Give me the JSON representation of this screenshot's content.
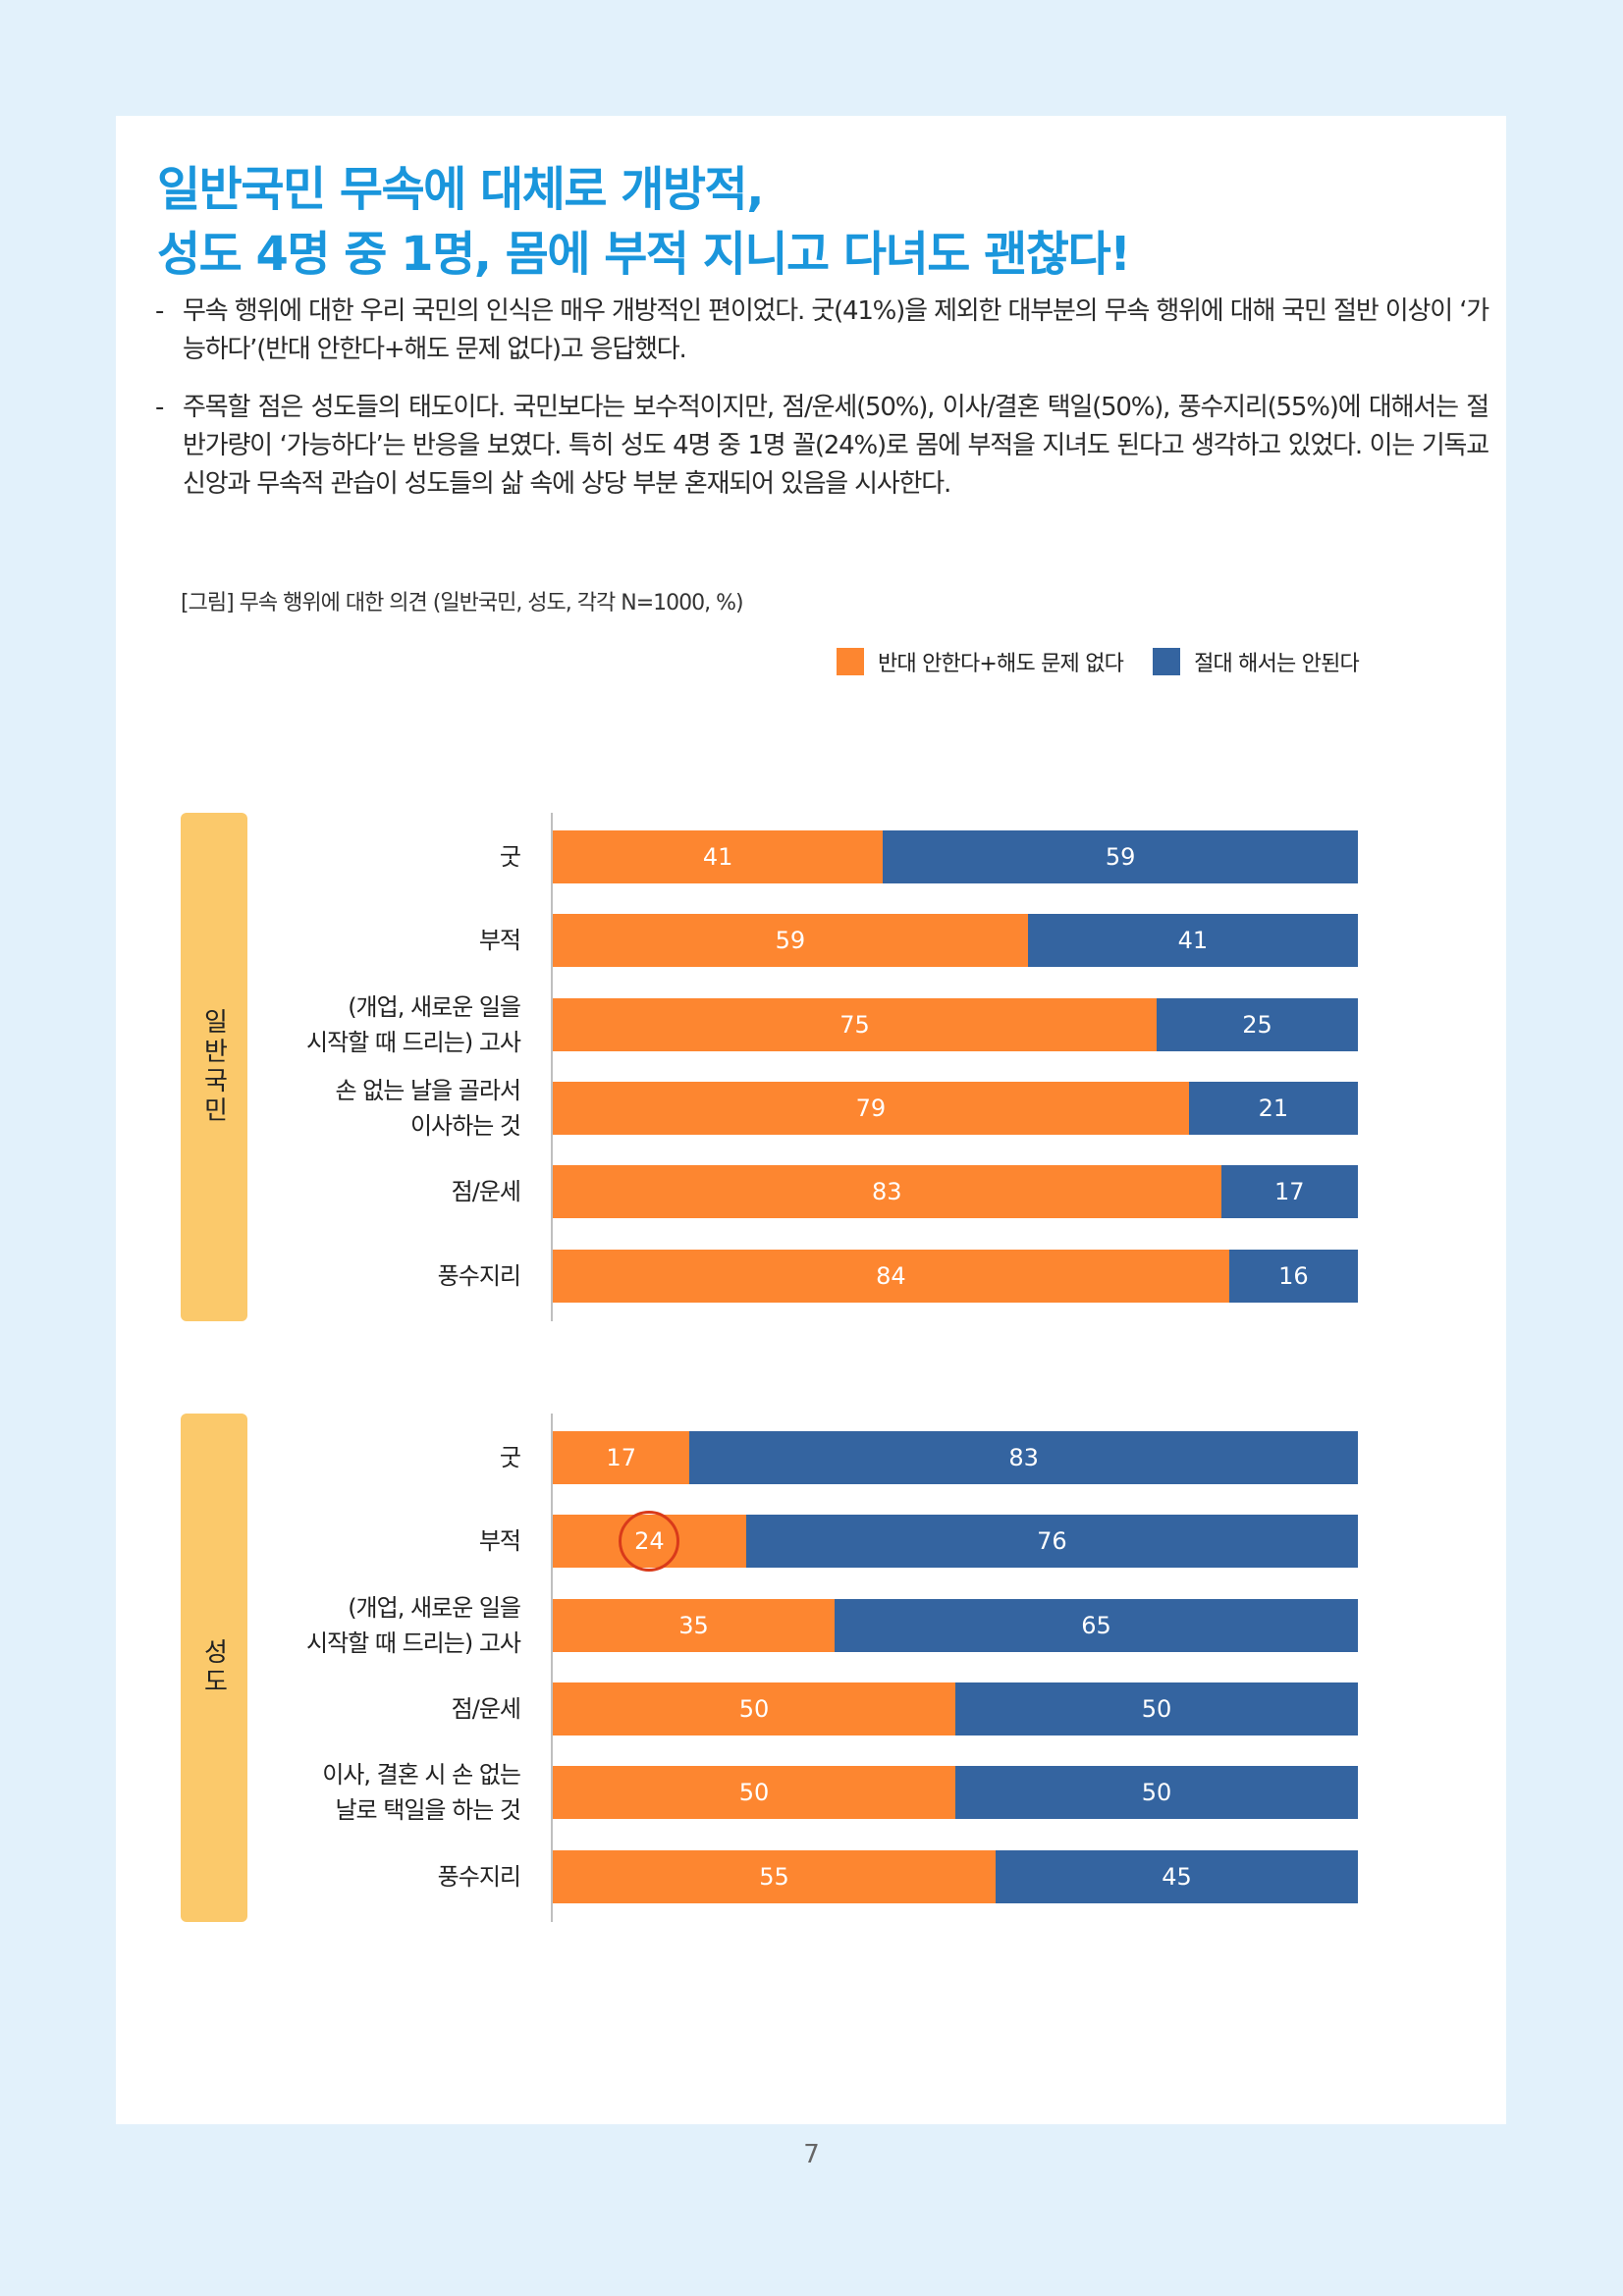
{
  "title": [
    "일반국민 무속에 대체로 개방적,",
    "성도 4명 중 1명, 몸에 부적 지니고 다녀도 괜찮다!"
  ],
  "bullets": [
    "무속 행위에 대한 우리 국민의 인식은 매우 개방적인 편이었다. 굿(41%)을 제외한 대부분의 무속 행위에 대해 국민 절반 이상이 ‘가능하다’(반대 안한다+해도 문제 없다)고 응답했다.",
    "주목할 점은 성도들의 태도이다. 국민보다는 보수적이지만, 점/운세(50%), 이사/결혼 택일(50%), 풍수지리(55%)에 대해서는 절반가량이 ‘가능하다’는 반응을 보였다. 특히 성도 4명 중 1명 꼴(24%)로 몸에 부적을 지녀도 된다고 생각하고 있었다. 이는 기독교 신앙과 무속적 관습이 성도들의 삶 속에 상당 부분 혼재되어 있음을 시사한다."
  ],
  "bullet_dash": "-",
  "caption": "[그림] 무속 행위에 대한 의견 (일반국민, 성도, 각각 N=1000, %)",
  "page_number": "7",
  "colors": {
    "title": "#1a96dc",
    "series_a": "#fd8630",
    "series_b": "#3464a0",
    "tag": "#fbc96b",
    "highlight": "#d93a1a"
  },
  "chart_data": [
    {
      "type": "bar",
      "orientation": "horizontal",
      "stacked": true,
      "group_label": "일반국민",
      "categories": [
        [
          "굿"
        ],
        [
          "부적"
        ],
        [
          "(개업, 새로운 일을",
          "시작할 때 드리는) 고사"
        ],
        [
          "손 없는 날을 골라서",
          "이사하는 것"
        ],
        [
          "점/운세"
        ],
        [
          "풍수지리"
        ]
      ],
      "series": [
        {
          "name": "반대 안한다+해도 문제 없다",
          "values": [
            41,
            59,
            75,
            79,
            83,
            84
          ]
        },
        {
          "name": "절대 해서는 안된다",
          "values": [
            59,
            41,
            25,
            21,
            17,
            16
          ]
        }
      ],
      "xlim": [
        0,
        100
      ],
      "legend": "top-right"
    },
    {
      "type": "bar",
      "orientation": "horizontal",
      "stacked": true,
      "group_label": "성도",
      "categories": [
        [
          "굿"
        ],
        [
          "부적"
        ],
        [
          "(개업, 새로운 일을",
          "시작할 때 드리는) 고사"
        ],
        [
          "점/운세"
        ],
        [
          "이사, 결혼 시 손 없는",
          "날로 택일을 하는 것"
        ],
        [
          "풍수지리"
        ]
      ],
      "series": [
        {
          "name": "반대 안한다+해도 문제 없다",
          "values": [
            17,
            24,
            35,
            50,
            50,
            55
          ]
        },
        {
          "name": "절대 해서는 안된다",
          "values": [
            83,
            76,
            65,
            50,
            50,
            45
          ]
        }
      ],
      "xlim": [
        0,
        100
      ],
      "highlight": {
        "category_index": 1,
        "series_index": 0
      }
    }
  ]
}
